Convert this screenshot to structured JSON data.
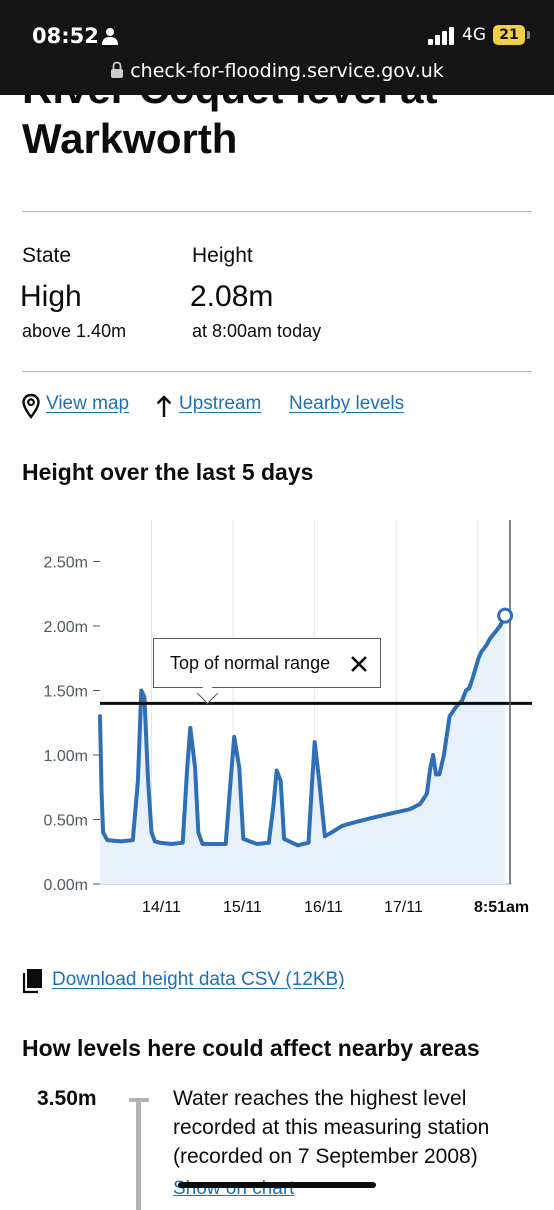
{
  "status_bar": {
    "time": "08:52",
    "network": "4G",
    "battery": "21",
    "url": "check-for-flooding.service.gov.uk",
    "icons": [
      "person-icon",
      "signal-icon",
      "lock-icon"
    ]
  },
  "header": {
    "title": "River Coquet level at Warkworth"
  },
  "summary": {
    "state_label": "State",
    "state_value": "High",
    "state_sub": "above 1.40m",
    "height_label": "Height",
    "height_value": "2.08m",
    "height_sub": "at 8:00am today"
  },
  "links": {
    "view_map": "View map",
    "upstream": "Upstream",
    "nearby": "Nearby levels",
    "icons": [
      "map-pin-icon",
      "arrow-up-icon"
    ]
  },
  "chart_section": {
    "heading": "Height over the last 5 days",
    "tooltip": "Top of normal range"
  },
  "chart_data": {
    "type": "area",
    "x_start": "13/11 08:51",
    "x_end": "18/11 08:51",
    "x_tick_labels": [
      "14/11",
      "15/11",
      "16/11",
      "17/11",
      "8:51am"
    ],
    "y_tick_labels": [
      "0.00m",
      "0.50m",
      "1.00m",
      "1.50m",
      "2.00m",
      "2.50m"
    ],
    "ylim": [
      0,
      2.7
    ],
    "threshold": 1.4,
    "latest_value": 2.08,
    "grid": true,
    "colors": {
      "line": "#2f6fb5",
      "fill": "#e8f0f9",
      "threshold": "#0b0c0c"
    },
    "series": [
      {
        "x": [
          "13/11 08:51",
          "13/11 09:20",
          "13/11 09:45",
          "13/11 11:00",
          "13/11 15:00",
          "13/11 18:30",
          "13/11 20:00",
          "13/11 21:00",
          "13/11 21:55",
          "13/11 23:00",
          "14/11 00:00",
          "14/11 01:00",
          "14/11 02:30",
          "14/11 06:00",
          "14/11 09:10",
          "14/11 10:30",
          "14/11 11:25",
          "14/11 12:50",
          "14/11 13:45",
          "14/11 15:00",
          "14/11 19:00",
          "14/11 21:50",
          "14/11 23:15",
          "15/11 00:20",
          "15/11 01:50",
          "15/11 03:00",
          "15/11 07:00",
          "15/11 10:30",
          "15/11 11:50",
          "15/11 12:50",
          "15/11 14:00",
          "15/11 15:00",
          "15/11 19:00",
          "15/11 22:10",
          "15/11 23:15",
          "16/11 00:00",
          "16/11 01:20",
          "16/11 03:00",
          "16/11 05:00",
          "16/11 08:00",
          "16/11 12:00",
          "16/11 18:00",
          "16/11 23:00",
          "17/11 04:00",
          "17/11 07:00",
          "17/11 09:00",
          "17/11 10:00",
          "17/11 10:50",
          "17/11 11:40",
          "17/11 12:40",
          "17/11 14:00",
          "17/11 15:40",
          "17/11 17:45",
          "17/11 19:20",
          "17/11 20:30",
          "17/11 21:30",
          "17/11 22:30",
          "18/11 00:10",
          "18/11 01:00",
          "18/11 02:30",
          "18/11 03:30",
          "18/11 05:00",
          "18/11 06:30",
          "18/11 07:30",
          "18/11 08:00"
        ],
        "y": [
          1.3,
          0.7,
          0.4,
          0.34,
          0.33,
          0.34,
          0.8,
          1.5,
          1.45,
          0.8,
          0.4,
          0.33,
          0.32,
          0.31,
          0.32,
          0.9,
          1.21,
          0.9,
          0.4,
          0.31,
          0.31,
          0.31,
          0.8,
          1.14,
          0.9,
          0.35,
          0.31,
          0.32,
          0.6,
          0.88,
          0.8,
          0.35,
          0.3,
          0.32,
          0.8,
          1.1,
          0.8,
          0.37,
          0.4,
          0.45,
          0.48,
          0.52,
          0.55,
          0.58,
          0.62,
          0.7,
          0.9,
          1.0,
          0.85,
          0.85,
          1.0,
          1.3,
          1.38,
          1.42,
          1.5,
          1.52,
          1.6,
          1.75,
          1.8,
          1.85,
          1.9,
          1.95,
          2.0,
          2.05,
          2.08
        ]
      }
    ]
  },
  "download": {
    "label": "Download height data CSV (12KB)"
  },
  "impacts": {
    "heading": "How levels here could affect nearby areas",
    "level": "3.50m",
    "description": "Water reaches the highest level recorded at this measuring station (recorded on 7 September 2008)",
    "link": "Show on chart"
  }
}
